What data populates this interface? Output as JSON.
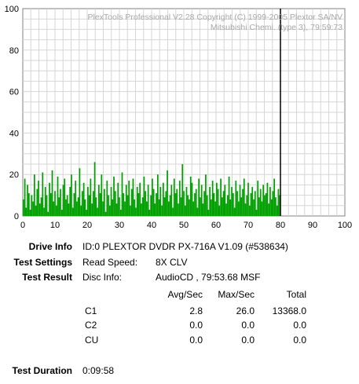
{
  "chart_data": {
    "type": "bar",
    "watermark": [
      "PlexTools Professional V2.28 Copyright (C) 1999-2005 Plextor SA/NV",
      "Mitsubishi Chemi. (type 3), 79:59:73"
    ],
    "xlim": [
      0,
      100
    ],
    "ylim": [
      0,
      100
    ],
    "x_ticks": [
      0,
      10,
      20,
      30,
      40,
      50,
      60,
      70,
      80,
      90,
      100
    ],
    "y_ticks": [
      0,
      20,
      40,
      60,
      80,
      100
    ],
    "grid": true,
    "marker_x": 80,
    "series": [
      {
        "color": "#00a000",
        "x_start": 0,
        "x_end": 80,
        "values": [
          8,
          18,
          4,
          15,
          11,
          3,
          10,
          7,
          20,
          5,
          13,
          17,
          6,
          9,
          21,
          4,
          14,
          10,
          2,
          16,
          11,
          22,
          7,
          12,
          5,
          19,
          9,
          13,
          3,
          15,
          18,
          8,
          10,
          6,
          14,
          20,
          4,
          11,
          17,
          7,
          9,
          23,
          5,
          12,
          16,
          8,
          3,
          14,
          10,
          18,
          6,
          12,
          26,
          9,
          4,
          15,
          11,
          20,
          7,
          13,
          2,
          17,
          10,
          5,
          14,
          8,
          19,
          12,
          6,
          16,
          9,
          3,
          21,
          11,
          7,
          15,
          10,
          17,
          5,
          13,
          18,
          8,
          4,
          14,
          11,
          16,
          6,
          9,
          19,
          12,
          7,
          15,
          3,
          10,
          18,
          13,
          6,
          11,
          20,
          8,
          14,
          5,
          16,
          9,
          12,
          22,
          7,
          10,
          15,
          4,
          18,
          11,
          13,
          6,
          17,
          9,
          25,
          12,
          5,
          14,
          10,
          8,
          19,
          16,
          7,
          11,
          13,
          4,
          18,
          9,
          15,
          6,
          12,
          20,
          10,
          3,
          14,
          8,
          17,
          11,
          7,
          16,
          13,
          5,
          18,
          9,
          12,
          15,
          6,
          10,
          19,
          8,
          14,
          11,
          4,
          17,
          12,
          7,
          15,
          9,
          13,
          18,
          6,
          10,
          16,
          5,
          11,
          14,
          8,
          12,
          3,
          17,
          9,
          13,
          7,
          15,
          10,
          11,
          16,
          6,
          14,
          8,
          12,
          18,
          9,
          5,
          13,
          10
        ]
      }
    ]
  },
  "drive_info": {
    "label": "Drive Info",
    "value": "ID:0 PLEXTOR DVDR PX-716A V1.09 (#538634)"
  },
  "test_settings": {
    "label": "Test Settings",
    "key": "Read Speed:",
    "value": "8X CLV"
  },
  "test_result": {
    "label": "Test Result",
    "key": "Disc Info:",
    "value": "AudioCD , 79:53.68 MSF"
  },
  "table": {
    "headers": [
      "Avg/Sec",
      "Max/Sec",
      "Total"
    ],
    "rows": [
      {
        "name": "C1",
        "avg": "2.8",
        "max": "26.0",
        "total": "13368.0"
      },
      {
        "name": "C2",
        "avg": "0.0",
        "max": "0.0",
        "total": "0.0"
      },
      {
        "name": "CU",
        "avg": "0.0",
        "max": "0.0",
        "total": "0.0"
      }
    ]
  },
  "test_duration": {
    "label": "Test Duration",
    "value": "0:09:58"
  }
}
